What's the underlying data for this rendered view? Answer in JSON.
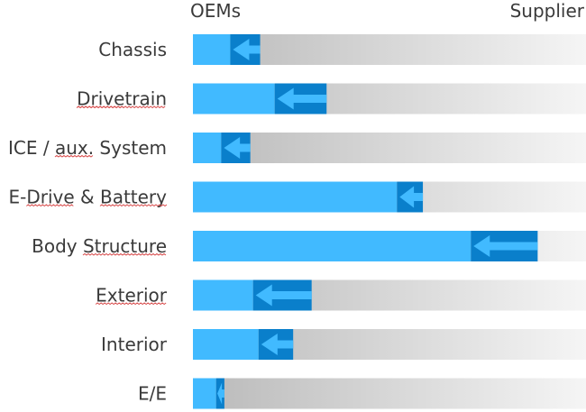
{
  "chart_data": {
    "type": "bar",
    "header": {
      "left": "OEMs",
      "right": "Supplier"
    },
    "scale": [
      0,
      100
    ],
    "colors": {
      "oem_share": "#41baff",
      "shift_arrow": "#0a7fcb",
      "track_start": "#b9b9b9",
      "track_end": "#f5f5f5"
    },
    "categories": [
      "Chassis",
      "Drivetrain",
      "ICE / aux. System",
      "E-Drive & Battery",
      "Body Structure",
      "Exterior",
      "Interior",
      "E/E"
    ],
    "series": [
      {
        "values": [
          9.5,
          20.8,
          7.2,
          51.9,
          70.7,
          15.3,
          16.7,
          5.9
        ]
      },
      {
        "values": [
          17.1,
          34.0,
          14.6,
          58.5,
          87.7,
          30.2,
          25.5,
          8.0
        ]
      }
    ],
    "underlined_words": [
      "Drivetrain",
      "aux.",
      "Drive",
      "Battery",
      "Structure",
      "Exterior"
    ]
  }
}
